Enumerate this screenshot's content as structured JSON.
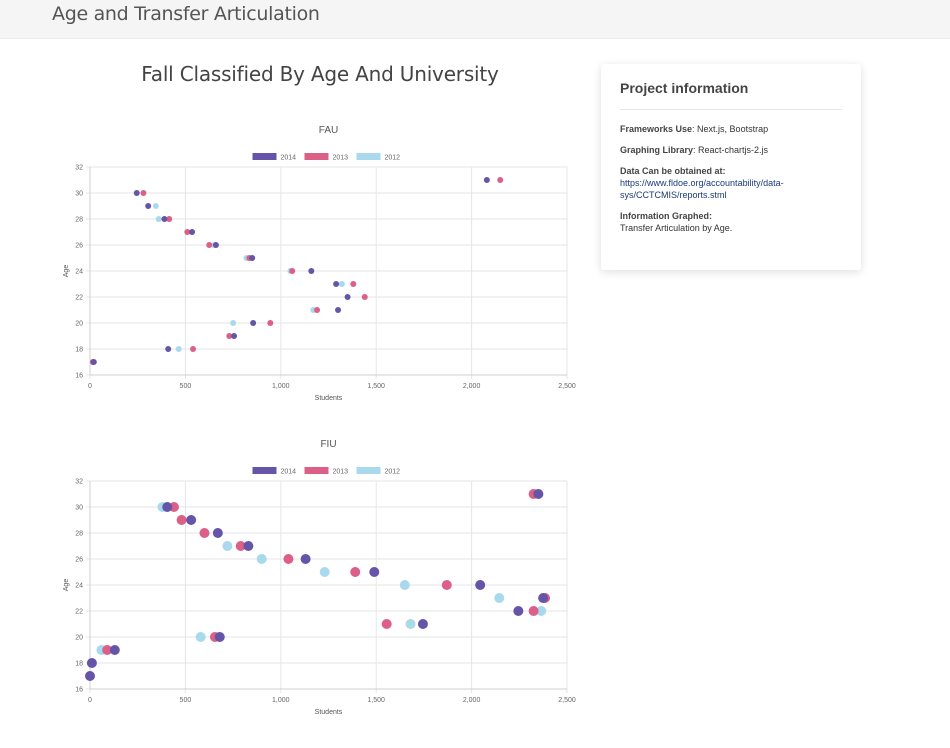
{
  "header": {
    "brand": "Age and Transfer Articulation"
  },
  "main": {
    "title": "Fall Classified By Age And University"
  },
  "info": {
    "title": "Project information",
    "frameworks_label": "Frameworks Use",
    "frameworks_value": ": Next.js, Bootstrap",
    "graphing_label": "Graphing Library",
    "graphing_value": ": React-chartjs-2.js",
    "data_label": "Data Can be obtained at:",
    "data_link": "https://www.fldoe.org/accountability/data-sys/CCTCMIS/reports.stml",
    "graphed_label": "Information Graphed:",
    "graphed_value": "Transfer Articulation by Age."
  },
  "colors": {
    "2014": "#6554a8",
    "2013": "#db5f86",
    "2012": "#a9d9ed"
  },
  "chart_data": [
    {
      "id": "fau",
      "type": "scatter",
      "title": "FAU",
      "xlabel": "Students",
      "ylabel": "Age",
      "xlim": [
        0,
        2500
      ],
      "ylim": [
        16,
        32
      ],
      "xticks": [
        "0",
        "500",
        "1,000",
        "1,500",
        "2,000",
        "2,500"
      ],
      "yticks": [
        "16",
        "18",
        "20",
        "22",
        "24",
        "26",
        "28",
        "30",
        "32"
      ],
      "legend_position": "top",
      "grid": true,
      "point_radius": 3,
      "series": [
        {
          "name": "2014",
          "color": "#6554a8",
          "points": [
            [
              20,
              17
            ],
            [
              410,
              18
            ],
            [
              755,
              19
            ],
            [
              855,
              20
            ],
            [
              1300,
              21
            ],
            [
              1350,
              22
            ],
            [
              1290,
              23
            ],
            [
              1160,
              24
            ],
            [
              850,
              25
            ],
            [
              660,
              26
            ],
            [
              535,
              27
            ],
            [
              390,
              28
            ],
            [
              305,
              29
            ],
            [
              245,
              30
            ],
            [
              2080,
              31
            ]
          ]
        },
        {
          "name": "2013",
          "color": "#db5f86",
          "points": [
            [
              15,
              17
            ],
            [
              540,
              18
            ],
            [
              730,
              19
            ],
            [
              945,
              20
            ],
            [
              1190,
              21
            ],
            [
              1440,
              22
            ],
            [
              1380,
              23
            ],
            [
              1060,
              24
            ],
            [
              835,
              25
            ],
            [
              625,
              26
            ],
            [
              510,
              27
            ],
            [
              415,
              28
            ],
            [
              280,
              30
            ],
            [
              2150,
              31
            ]
          ]
        },
        {
          "name": "2012",
          "color": "#a9d9ed",
          "points": [
            [
              465,
              18
            ],
            [
              750,
              20
            ],
            [
              1170,
              21
            ],
            [
              1320,
              23
            ],
            [
              1050,
              24
            ],
            [
              820,
              25
            ],
            [
              650,
              26
            ],
            [
              360,
              28
            ],
            [
              345,
              29
            ]
          ]
        }
      ]
    },
    {
      "id": "fiu",
      "type": "scatter",
      "title": "FIU",
      "xlabel": "Students",
      "ylabel": "Age",
      "xlim": [
        0,
        2500
      ],
      "ylim": [
        16,
        32
      ],
      "xticks": [
        "0",
        "500",
        "1,000",
        "1,500",
        "2,000",
        "2,500"
      ],
      "yticks": [
        "16",
        "18",
        "20",
        "22",
        "24",
        "26",
        "28",
        "30",
        "32"
      ],
      "legend_position": "top",
      "grid": true,
      "point_radius": 5,
      "series": [
        {
          "name": "2014",
          "color": "#6554a8",
          "points": [
            [
              0,
              17
            ],
            [
              10,
              18
            ],
            [
              130,
              19
            ],
            [
              680,
              20
            ],
            [
              1745,
              21
            ],
            [
              2245,
              22
            ],
            [
              2375,
              23
            ],
            [
              2045,
              24
            ],
            [
              1490,
              25
            ],
            [
              1130,
              26
            ],
            [
              830,
              27
            ],
            [
              670,
              28
            ],
            [
              530,
              29
            ],
            [
              405,
              30
            ],
            [
              2350,
              31
            ]
          ]
        },
        {
          "name": "2013",
          "color": "#db5f86",
          "points": [
            [
              90,
              19
            ],
            [
              655,
              20
            ],
            [
              1555,
              21
            ],
            [
              2325,
              22
            ],
            [
              2385,
              23
            ],
            [
              1870,
              24
            ],
            [
              1390,
              25
            ],
            [
              1040,
              26
            ],
            [
              790,
              27
            ],
            [
              600,
              28
            ],
            [
              480,
              29
            ],
            [
              440,
              30
            ],
            [
              2325,
              31
            ]
          ]
        },
        {
          "name": "2012",
          "color": "#a9d9ed",
          "points": [
            [
              60,
              19
            ],
            [
              580,
              20
            ],
            [
              1680,
              21
            ],
            [
              2365,
              22
            ],
            [
              2145,
              23
            ],
            [
              1650,
              24
            ],
            [
              1230,
              25
            ],
            [
              900,
              26
            ],
            [
              720,
              27
            ],
            [
              380,
              30
            ]
          ]
        }
      ]
    }
  ]
}
